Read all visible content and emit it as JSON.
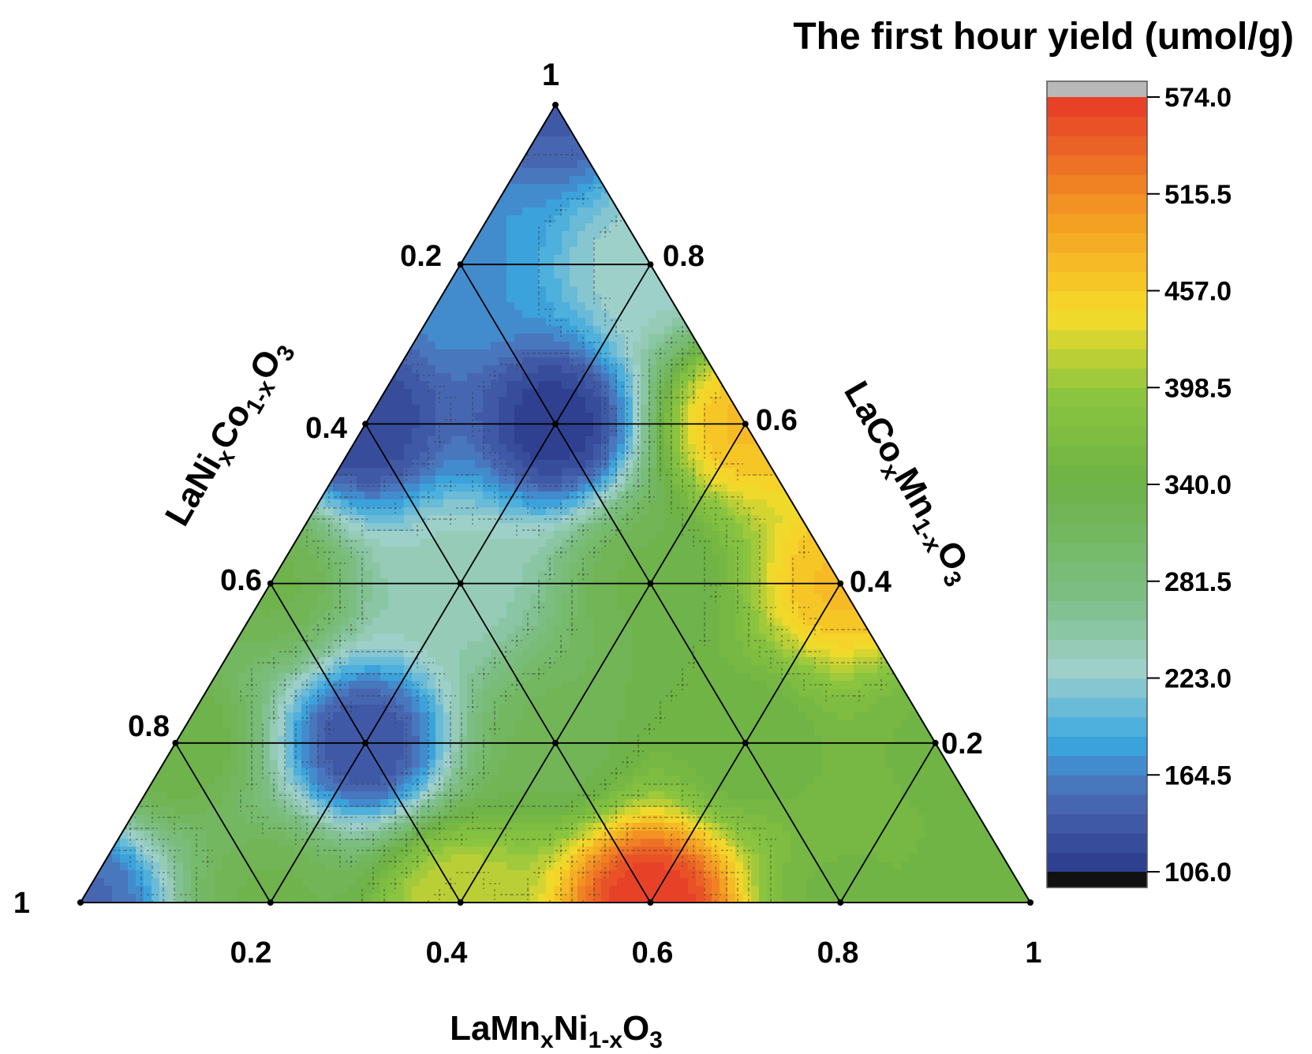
{
  "chart_data": {
    "type": "heatmap",
    "subtype": "ternary-contour",
    "title": "The first hour yield (umol/g)",
    "axes": {
      "bottom": {
        "prefix": "LaMn",
        "sub1": "x",
        "mid": "Ni",
        "sub2": "1-x",
        "suffix": "O",
        "sub3": "3"
      },
      "left": {
        "prefix": "LaNi",
        "sub1": "x",
        "mid": "Co",
        "sub2": "1-x",
        "suffix": "O",
        "sub3": "3"
      },
      "right": {
        "prefix": "LaCo",
        "sub1": "x",
        "mid": "Mn",
        "sub2": "1-x",
        "suffix": "O",
        "sub3": "3"
      }
    },
    "ticks": {
      "bottom": [
        "0.2",
        "0.4",
        "0.6",
        "0.8",
        "1"
      ],
      "left": [
        "0.2",
        "0.4",
        "0.6",
        "0.8",
        "1"
      ],
      "right": [
        "0.8",
        "0.6",
        "0.4",
        "0.2"
      ],
      "top": "1"
    },
    "colorbar": {
      "min": 106.0,
      "max": 574.0,
      "tick_labels": [
        "574.0",
        "515.5",
        "457.0",
        "398.5",
        "340.0",
        "281.5",
        "223.0",
        "164.5",
        "106.0"
      ],
      "over_color": "#b8b8b8",
      "under_color": "#111111",
      "stops": [
        {
          "v": 0.0,
          "c": "#2b3a8a"
        },
        {
          "v": 0.1,
          "c": "#4b6cb7"
        },
        {
          "v": 0.17,
          "c": "#3aa8e0"
        },
        {
          "v": 0.26,
          "c": "#9fd0cc"
        },
        {
          "v": 0.35,
          "c": "#7dbf87"
        },
        {
          "v": 0.5,
          "c": "#6db246"
        },
        {
          "v": 0.62,
          "c": "#8dc63f"
        },
        {
          "v": 0.72,
          "c": "#f7dc2a"
        },
        {
          "v": 0.85,
          "c": "#f39a22"
        },
        {
          "v": 1.0,
          "c": "#e63a28"
        }
      ]
    },
    "samples": [
      {
        "mn": 0.0,
        "ni": 0.0,
        "co": 1.0,
        "yield": 140
      },
      {
        "mn": 0.0,
        "ni": 0.2,
        "co": 0.8,
        "yield": 175
      },
      {
        "mn": 0.2,
        "ni": 0.0,
        "co": 0.8,
        "yield": 230
      },
      {
        "mn": 0.0,
        "ni": 0.4,
        "co": 0.6,
        "yield": 120
      },
      {
        "mn": 0.2,
        "ni": 0.2,
        "co": 0.6,
        "yield": 110
      },
      {
        "mn": 0.4,
        "ni": 0.0,
        "co": 0.6,
        "yield": 470
      },
      {
        "mn": 0.0,
        "ni": 0.6,
        "co": 0.4,
        "yield": 330
      },
      {
        "mn": 0.2,
        "ni": 0.4,
        "co": 0.4,
        "yield": 240
      },
      {
        "mn": 0.4,
        "ni": 0.2,
        "co": 0.4,
        "yield": 330
      },
      {
        "mn": 0.6,
        "ni": 0.0,
        "co": 0.4,
        "yield": 470
      },
      {
        "mn": 0.0,
        "ni": 0.8,
        "co": 0.2,
        "yield": 340
      },
      {
        "mn": 0.2,
        "ni": 0.6,
        "co": 0.2,
        "yield": 130
      },
      {
        "mn": 0.4,
        "ni": 0.4,
        "co": 0.2,
        "yield": 320
      },
      {
        "mn": 0.6,
        "ni": 0.2,
        "co": 0.2,
        "yield": 340
      },
      {
        "mn": 0.8,
        "ni": 0.0,
        "co": 0.2,
        "yield": 350
      },
      {
        "mn": 0.0,
        "ni": 1.0,
        "co": 0.0,
        "yield": 150
      },
      {
        "mn": 0.2,
        "ni": 0.8,
        "co": 0.0,
        "yield": 330
      },
      {
        "mn": 0.4,
        "ni": 0.6,
        "co": 0.0,
        "yield": 420
      },
      {
        "mn": 0.6,
        "ni": 0.4,
        "co": 0.0,
        "yield": 574
      },
      {
        "mn": 0.8,
        "ni": 0.2,
        "co": 0.0,
        "yield": 350
      },
      {
        "mn": 1.0,
        "ni": 0.0,
        "co": 0.0,
        "yield": 340
      }
    ]
  }
}
